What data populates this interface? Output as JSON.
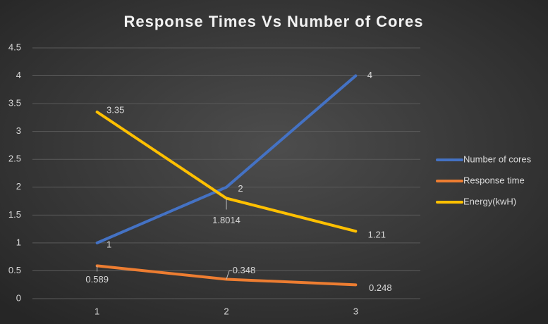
{
  "chart_data": {
    "type": "line",
    "title": "Response Times Vs  Number of Cores",
    "categories": [
      "1",
      "2",
      "3"
    ],
    "series": [
      {
        "name": "Number of cores",
        "color": "#4472c4",
        "values": [
          1,
          2,
          4
        ]
      },
      {
        "name": "Response time",
        "color": "#ed7d31",
        "values": [
          0.589,
          0.348,
          0.248
        ]
      },
      {
        "name": "Energy(kwH)",
        "color": "#ffc000",
        "values": [
          3.35,
          1.8014,
          1.21
        ]
      }
    ],
    "ylim": [
      0,
      4.5
    ],
    "yticks": [
      0,
      0.5,
      1,
      1.5,
      2,
      2.5,
      3,
      3.5,
      4,
      4.5
    ],
    "grid": true,
    "legend": "right"
  }
}
